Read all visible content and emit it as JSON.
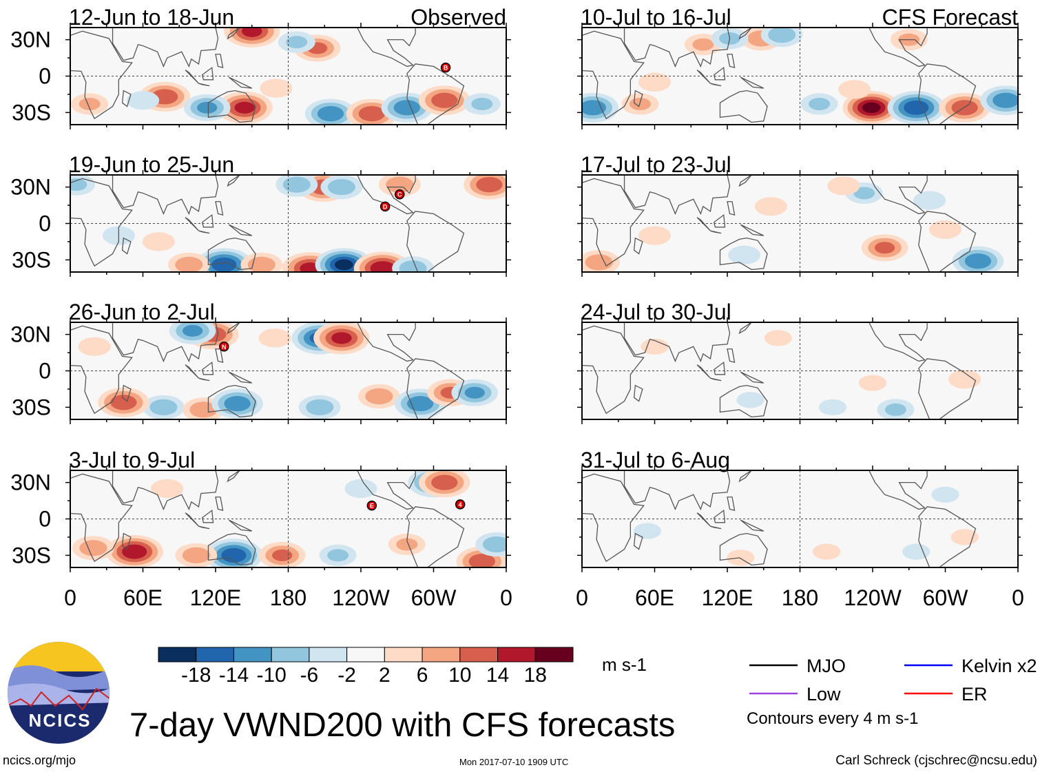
{
  "chart_data": {
    "type": "heatmap",
    "title": "7-day VWND200 with CFS forecasts",
    "variable": "VWND200",
    "units": "m s-1",
    "lat_range": [
      -40,
      40
    ],
    "lon_range": [
      0,
      360
    ],
    "lat_ticks": [
      {
        "value": 30,
        "label": "30N"
      },
      {
        "value": 0,
        "label": "0"
      },
      {
        "value": -30,
        "label": "30S"
      }
    ],
    "lon_ticks": [
      {
        "value": 0,
        "label": "0"
      },
      {
        "value": 60,
        "label": "60E"
      },
      {
        "value": 120,
        "label": "120E"
      },
      {
        "value": 180,
        "label": "180"
      },
      {
        "value": 240,
        "label": "120W"
      },
      {
        "value": 300,
        "label": "60W"
      },
      {
        "value": 360,
        "label": "0"
      }
    ],
    "column_labels": {
      "left": "Observed",
      "right": "CFS Forecast"
    },
    "colorbar": {
      "levels": [
        -18,
        -14,
        -10,
        -6,
        -2,
        2,
        6,
        10,
        14,
        18
      ],
      "labels": [
        "-18",
        "-14",
        "-10",
        "-6",
        "-2",
        "2",
        "6",
        "10",
        "14",
        "18"
      ],
      "colors": [
        "#0a2e5e",
        "#2166ac",
        "#4393c3",
        "#92c5de",
        "#d1e5f0",
        "#f7f7f7",
        "#fddbc7",
        "#f4a582",
        "#d6604d",
        "#b2182b",
        "#67001f"
      ],
      "units_label": "m s-1"
    },
    "panels": [
      {
        "column": "left",
        "title": "12-Jun to 18-Jun",
        "anomalies": [
          [
            78,
            -17,
            14
          ],
          [
            144,
            -26,
            16
          ],
          [
            113,
            -26,
            -12
          ],
          [
            150,
            37,
            16
          ],
          [
            215,
            -31,
            -14
          ],
          [
            249,
            -31,
            14
          ],
          [
            278,
            -26,
            -14
          ],
          [
            309,
            -20,
            14
          ],
          [
            204,
            23,
            12
          ],
          [
            340,
            -23,
            -8
          ],
          [
            16,
            -23,
            8
          ],
          [
            187,
            28,
            -8
          ],
          [
            60,
            -20,
            -6
          ],
          [
            170,
            -10,
            6
          ]
        ],
        "storms": [
          {
            "label": "B",
            "lon": 310,
            "lat": 7
          }
        ]
      },
      {
        "column": "left",
        "title": "19-Jun to 25-Jun",
        "anomalies": [
          [
            127,
            -34,
            -18
          ],
          [
            98,
            -34,
            10
          ],
          [
            158,
            -34,
            10
          ],
          [
            198,
            -37,
            16
          ],
          [
            226,
            -34,
            -20
          ],
          [
            258,
            -37,
            18
          ],
          [
            283,
            -37,
            -10
          ],
          [
            346,
            32,
            14
          ],
          [
            209,
            30,
            14
          ],
          [
            224,
            30,
            -10
          ],
          [
            187,
            32,
            -10
          ],
          [
            272,
            32,
            10
          ],
          [
            5,
            32,
            -8
          ],
          [
            73,
            -15,
            6
          ],
          [
            40,
            -10,
            -6
          ]
        ],
        "storms": [
          {
            "label": "C",
            "lon": 272,
            "lat": 24
          },
          {
            "label": "D",
            "lon": 260,
            "lat": 14
          }
        ]
      },
      {
        "column": "left",
        "title": "26-Jun to 2-Jul",
        "anomalies": [
          [
            77,
            -30,
            -10
          ],
          [
            44,
            -26,
            14
          ],
          [
            110,
            -32,
            10
          ],
          [
            138,
            -27,
            -14
          ],
          [
            118,
            30,
            14
          ],
          [
            101,
            33,
            -12
          ],
          [
            206,
            27,
            -16
          ],
          [
            224,
            27,
            16
          ],
          [
            206,
            -30,
            -10
          ],
          [
            255,
            -21,
            10
          ],
          [
            289,
            -27,
            -14
          ],
          [
            314,
            -18,
            12
          ],
          [
            334,
            -18,
            -12
          ],
          [
            169,
            27,
            6
          ],
          [
            20,
            20,
            6
          ]
        ],
        "storms": [
          {
            "label": "N",
            "lon": 127,
            "lat": 20
          }
        ]
      },
      {
        "column": "left",
        "title": "3-Jul to 9-Jul",
        "anomalies": [
          [
            53,
            -27,
            18
          ],
          [
            19,
            -24,
            10
          ],
          [
            135,
            -30,
            -18
          ],
          [
            104,
            -30,
            10
          ],
          [
            175,
            -30,
            12
          ],
          [
            221,
            -30,
            -8
          ],
          [
            278,
            -21,
            8
          ],
          [
            300,
            30,
            -14
          ],
          [
            309,
            30,
            14
          ],
          [
            340,
            -35,
            14
          ],
          [
            352,
            -21,
            -10
          ],
          [
            80,
            25,
            6
          ],
          [
            240,
            25,
            -6
          ]
        ],
        "storms": [
          {
            "label": "E",
            "lon": 249,
            "lat": 11
          },
          {
            "label": "4",
            "lon": 322,
            "lat": 12
          }
        ]
      },
      {
        "column": "right",
        "title": "10-Jul to 16-Jul",
        "anomalies": [
          [
            239,
            -26,
            20
          ],
          [
            276,
            -26,
            -18
          ],
          [
            316,
            -26,
            14
          ],
          [
            350,
            -20,
            -14
          ],
          [
            9,
            -26,
            -14
          ],
          [
            48,
            -23,
            8
          ],
          [
            196,
            -23,
            -8
          ],
          [
            148,
            31,
            10
          ],
          [
            165,
            34,
            -10
          ],
          [
            100,
            26,
            8
          ],
          [
            122,
            31,
            -8
          ],
          [
            225,
            -11,
            6
          ],
          [
            60,
            -5,
            6
          ],
          [
            270,
            30,
            8
          ]
        ],
        "storms": []
      },
      {
        "column": "right",
        "title": "17-Jul to 23-Jul",
        "anomalies": [
          [
            250,
            -20,
            12
          ],
          [
            327,
            -31,
            -14
          ],
          [
            14,
            -32,
            10
          ],
          [
            233,
            25,
            -8
          ],
          [
            216,
            31,
            6
          ],
          [
            156,
            14,
            6
          ],
          [
            134,
            -26,
            -6
          ],
          [
            287,
            19,
            -6
          ],
          [
            60,
            -10,
            6
          ],
          [
            300,
            -5,
            6
          ]
        ],
        "storms": []
      },
      {
        "column": "right",
        "title": "24-Jul to 30-Jul",
        "anomalies": [
          [
            259,
            -32,
            -8
          ],
          [
            139,
            -24,
            -4
          ],
          [
            316,
            -7,
            6
          ],
          [
            162,
            27,
            4
          ],
          [
            207,
            -30,
            -4
          ],
          [
            240,
            -10,
            4
          ],
          [
            60,
            20,
            4
          ]
        ],
        "storms": []
      },
      {
        "column": "right",
        "title": "31-Jul to 6-Aug",
        "anomalies": [
          [
            202,
            -27,
            4
          ],
          [
            276,
            -27,
            -4
          ],
          [
            316,
            -15,
            4
          ],
          [
            131,
            -32,
            4
          ],
          [
            54,
            -10,
            -4
          ],
          [
            300,
            20,
            -4
          ]
        ],
        "storms": []
      }
    ],
    "legend": [
      {
        "label": "MJO",
        "color": "#000000"
      },
      {
        "label": "Kelvin x2",
        "color": "#0000ff"
      },
      {
        "label": "Low",
        "color": "#a040e0"
      },
      {
        "label": "ER",
        "color": "#ff0000"
      }
    ],
    "contour_note": "Contours every 4 m s-1"
  },
  "logo": {
    "text": "NCICS"
  },
  "footer": {
    "url": "ncics.org/mjo",
    "timestamp": "Mon 2017-07-10 1909 UTC",
    "author": "Carl Schreck (cjschrec@ncsu.edu)"
  }
}
